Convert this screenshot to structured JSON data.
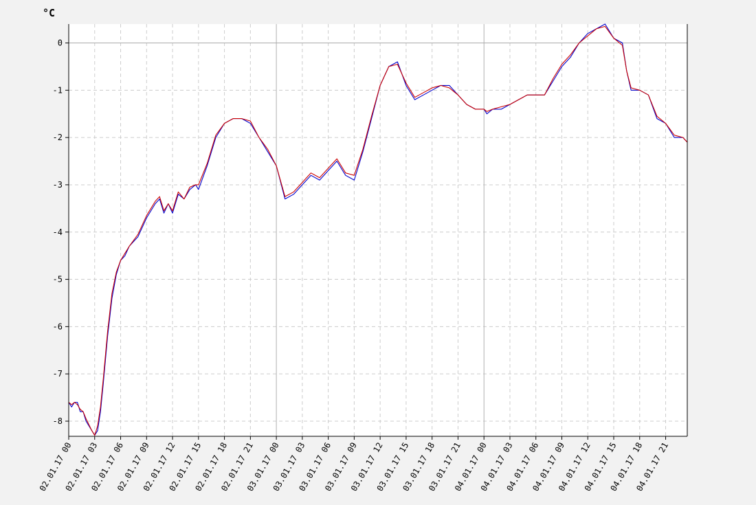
{
  "chart_data": {
    "type": "line",
    "unit_label": "°C",
    "ylabel": "°C",
    "xlabel": "",
    "title": "",
    "ylim": [
      -8.32,
      0.4
    ],
    "xlim_hours": [
      0,
      71.5
    ],
    "grid": true,
    "legend": "none",
    "y_ticks": [
      0,
      -1,
      -2,
      -3,
      -4,
      -5,
      -6,
      -7,
      -8
    ],
    "x_ticks": [
      {
        "t": "02.01.17 00:00",
        "label": "02.01.17 00"
      },
      {
        "t": "02.01.17 03:00",
        "label": "02.01.17 03"
      },
      {
        "t": "02.01.17 06:00",
        "label": "02.01.17 06"
      },
      {
        "t": "02.01.17 09:00",
        "label": "02.01.17 09"
      },
      {
        "t": "02.01.17 12:00",
        "label": "02.01.17 12"
      },
      {
        "t": "02.01.17 15:00",
        "label": "02.01.17 15"
      },
      {
        "t": "02.01.17 18:00",
        "label": "02.01.17 18"
      },
      {
        "t": "02.01.17 21:00",
        "label": "02.01.17 21"
      },
      {
        "t": "03.01.17 00:00",
        "label": "03.01.17 00"
      },
      {
        "t": "03.01.17 03:00",
        "label": "03.01.17 03"
      },
      {
        "t": "03.01.17 06:00",
        "label": "03.01.17 06"
      },
      {
        "t": "03.01.17 09:00",
        "label": "03.01.17 09"
      },
      {
        "t": "03.01.17 12:00",
        "label": "03.01.17 12"
      },
      {
        "t": "03.01.17 15:00",
        "label": "03.01.17 15"
      },
      {
        "t": "03.01.17 18:00",
        "label": "03.01.17 18"
      },
      {
        "t": "03.01.17 21:00",
        "label": "03.01.17 21"
      },
      {
        "t": "04.01.17 00:00",
        "label": "04.01.17 00"
      },
      {
        "t": "04.01.17 03:00",
        "label": "04.01.17 03"
      },
      {
        "t": "04.01.17 06:00",
        "label": "04.01.17 06"
      },
      {
        "t": "04.01.17 09:00",
        "label": "04.01.17 09"
      },
      {
        "t": "04.01.17 12:00",
        "label": "04.01.17 12"
      },
      {
        "t": "04.01.17 15:00",
        "label": "04.01.17 15"
      },
      {
        "t": "04.01.17 18:00",
        "label": "04.01.17 18"
      },
      {
        "t": "04.01.17 21:00",
        "label": "04.01.17 21"
      }
    ],
    "midnights": [
      "03.01.17 00:00",
      "04.01.17 00:00"
    ],
    "series": [
      {
        "color": "#0000cc",
        "points": [
          [
            "02.01.17 00:00",
            -7.6
          ],
          [
            "02.01.17 00:20",
            -7.7
          ],
          [
            "02.01.17 00:40",
            -7.6
          ],
          [
            "02.01.17 01:00",
            -7.6
          ],
          [
            "02.01.17 01:20",
            -7.8
          ],
          [
            "02.01.17 01:40",
            -7.8
          ],
          [
            "02.01.17 02:00",
            -8.0
          ],
          [
            "02.01.17 02:40",
            -8.2
          ],
          [
            "02.01.17 03:00",
            -8.3
          ],
          [
            "02.01.17 03:20",
            -8.2
          ],
          [
            "02.01.17 03:40",
            -7.8
          ],
          [
            "02.01.17 04:00",
            -7.2
          ],
          [
            "02.01.17 04:30",
            -6.2
          ],
          [
            "02.01.17 05:00",
            -5.4
          ],
          [
            "02.01.17 05:30",
            -4.9
          ],
          [
            "02.01.17 06:00",
            -4.6
          ],
          [
            "02.01.17 06:30",
            -4.5
          ],
          [
            "02.01.17 07:00",
            -4.3
          ],
          [
            "02.01.17 08:00",
            -4.1
          ],
          [
            "02.01.17 09:00",
            -3.7
          ],
          [
            "02.01.17 10:00",
            -3.4
          ],
          [
            "02.01.17 10:30",
            -3.3
          ],
          [
            "02.01.17 11:00",
            -3.6
          ],
          [
            "02.01.17 11:30",
            -3.4
          ],
          [
            "02.01.17 12:00",
            -3.6
          ],
          [
            "02.01.17 12:40",
            -3.2
          ],
          [
            "02.01.17 13:20",
            -3.3
          ],
          [
            "02.01.17 14:00",
            -3.1
          ],
          [
            "02.01.17 14:40",
            -3.0
          ],
          [
            "02.01.17 15:00",
            -3.1
          ],
          [
            "02.01.17 16:00",
            -2.6
          ],
          [
            "02.01.17 17:00",
            -2.0
          ],
          [
            "02.01.17 18:00",
            -1.7
          ],
          [
            "02.01.17 19:00",
            -1.6
          ],
          [
            "02.01.17 20:00",
            -1.6
          ],
          [
            "02.01.17 21:00",
            -1.7
          ],
          [
            "02.01.17 22:00",
            -2.0
          ],
          [
            "02.01.17 23:00",
            -2.3
          ],
          [
            "03.01.17 00:00",
            -2.6
          ],
          [
            "03.01.17 01:00",
            -3.3
          ],
          [
            "03.01.17 02:00",
            -3.2
          ],
          [
            "03.01.17 03:00",
            -3.0
          ],
          [
            "03.01.17 04:00",
            -2.8
          ],
          [
            "03.01.17 05:00",
            -2.9
          ],
          [
            "03.01.17 06:00",
            -2.7
          ],
          [
            "03.01.17 07:00",
            -2.5
          ],
          [
            "03.01.17 08:00",
            -2.8
          ],
          [
            "03.01.17 09:00",
            -2.9
          ],
          [
            "03.01.17 10:00",
            -2.3
          ],
          [
            "03.01.17 11:00",
            -1.6
          ],
          [
            "03.01.17 12:00",
            -0.9
          ],
          [
            "03.01.17 13:00",
            -0.5
          ],
          [
            "03.01.17 14:00",
            -0.4
          ],
          [
            "03.01.17 15:00",
            -0.9
          ],
          [
            "03.01.17 16:00",
            -1.2
          ],
          [
            "03.01.17 17:00",
            -1.1
          ],
          [
            "03.01.17 18:00",
            -1.0
          ],
          [
            "03.01.17 19:00",
            -0.9
          ],
          [
            "03.01.17 20:00",
            -0.9
          ],
          [
            "03.01.17 21:00",
            -1.1
          ],
          [
            "03.01.17 22:00",
            -1.3
          ],
          [
            "03.01.17 23:00",
            -1.4
          ],
          [
            "04.01.17 00:00",
            -1.4
          ],
          [
            "04.01.17 00:20",
            -1.5
          ],
          [
            "04.01.17 01:00",
            -1.4
          ],
          [
            "04.01.17 02:00",
            -1.4
          ],
          [
            "04.01.17 03:00",
            -1.3
          ],
          [
            "04.01.17 04:00",
            -1.2
          ],
          [
            "04.01.17 05:00",
            -1.1
          ],
          [
            "04.01.17 07:00",
            -1.1
          ],
          [
            "04.01.17 08:00",
            -0.8
          ],
          [
            "04.01.17 09:00",
            -0.5
          ],
          [
            "04.01.17 10:00",
            -0.3
          ],
          [
            "04.01.17 11:00",
            0.0
          ],
          [
            "04.01.17 12:00",
            0.2
          ],
          [
            "04.01.17 13:00",
            0.3
          ],
          [
            "04.01.17 14:00",
            0.4
          ],
          [
            "04.01.17 15:00",
            0.1
          ],
          [
            "04.01.17 16:00",
            0.0
          ],
          [
            "04.01.17 16:30",
            -0.6
          ],
          [
            "04.01.17 17:00",
            -1.0
          ],
          [
            "04.01.17 18:00",
            -1.0
          ],
          [
            "04.01.17 19:00",
            -1.1
          ],
          [
            "04.01.17 20:00",
            -1.6
          ],
          [
            "04.01.17 21:00",
            -1.7
          ],
          [
            "04.01.17 22:00",
            -2.0
          ],
          [
            "04.01.17 23:00",
            -2.0
          ],
          [
            "04.01.17 23:30",
            -2.1
          ]
        ]
      },
      {
        "color": "#cc0000",
        "points": [
          [
            "02.01.17 00:00",
            -7.6
          ],
          [
            "02.01.17 00:20",
            -7.65
          ],
          [
            "02.01.17 00:40",
            -7.6
          ],
          [
            "02.01.17 01:00",
            -7.65
          ],
          [
            "02.01.17 01:20",
            -7.75
          ],
          [
            "02.01.17 01:40",
            -7.8
          ],
          [
            "02.01.17 02:00",
            -7.95
          ],
          [
            "02.01.17 02:40",
            -8.2
          ],
          [
            "02.01.17 03:00",
            -8.3
          ],
          [
            "02.01.17 03:20",
            -8.1
          ],
          [
            "02.01.17 03:40",
            -7.7
          ],
          [
            "02.01.17 04:00",
            -7.1
          ],
          [
            "02.01.17 04:30",
            -6.1
          ],
          [
            "02.01.17 05:00",
            -5.3
          ],
          [
            "02.01.17 05:30",
            -4.85
          ],
          [
            "02.01.17 06:00",
            -4.6
          ],
          [
            "02.01.17 06:30",
            -4.45
          ],
          [
            "02.01.17 07:00",
            -4.3
          ],
          [
            "02.01.17 08:00",
            -4.05
          ],
          [
            "02.01.17 09:00",
            -3.65
          ],
          [
            "02.01.17 10:00",
            -3.35
          ],
          [
            "02.01.17 10:30",
            -3.25
          ],
          [
            "02.01.17 11:00",
            -3.55
          ],
          [
            "02.01.17 11:30",
            -3.4
          ],
          [
            "02.01.17 12:00",
            -3.55
          ],
          [
            "02.01.17 12:40",
            -3.15
          ],
          [
            "02.01.17 13:20",
            -3.3
          ],
          [
            "02.01.17 14:00",
            -3.05
          ],
          [
            "02.01.17 14:40",
            -3.0
          ],
          [
            "02.01.17 15:00",
            -3.0
          ],
          [
            "02.01.17 16:00",
            -2.55
          ],
          [
            "02.01.17 17:00",
            -1.95
          ],
          [
            "02.01.17 18:00",
            -1.7
          ],
          [
            "02.01.17 19:00",
            -1.6
          ],
          [
            "02.01.17 20:00",
            -1.6
          ],
          [
            "02.01.17 21:00",
            -1.65
          ],
          [
            "02.01.17 22:00",
            -2.0
          ],
          [
            "02.01.17 23:00",
            -2.25
          ],
          [
            "03.01.17 00:00",
            -2.6
          ],
          [
            "03.01.17 01:00",
            -3.25
          ],
          [
            "03.01.17 02:00",
            -3.15
          ],
          [
            "03.01.17 03:00",
            -2.95
          ],
          [
            "03.01.17 04:00",
            -2.75
          ],
          [
            "03.01.17 05:00",
            -2.85
          ],
          [
            "03.01.17 06:00",
            -2.65
          ],
          [
            "03.01.17 07:00",
            -2.45
          ],
          [
            "03.01.17 08:00",
            -2.75
          ],
          [
            "03.01.17 09:00",
            -2.8
          ],
          [
            "03.01.17 10:00",
            -2.25
          ],
          [
            "03.01.17 11:00",
            -1.55
          ],
          [
            "03.01.17 12:00",
            -0.9
          ],
          [
            "03.01.17 13:00",
            -0.5
          ],
          [
            "03.01.17 14:00",
            -0.45
          ],
          [
            "03.01.17 15:00",
            -0.85
          ],
          [
            "03.01.17 16:00",
            -1.15
          ],
          [
            "03.01.17 17:00",
            -1.05
          ],
          [
            "03.01.17 18:00",
            -0.95
          ],
          [
            "03.01.17 19:00",
            -0.9
          ],
          [
            "03.01.17 20:00",
            -0.95
          ],
          [
            "03.01.17 21:00",
            -1.1
          ],
          [
            "03.01.17 22:00",
            -1.3
          ],
          [
            "03.01.17 23:00",
            -1.4
          ],
          [
            "04.01.17 00:00",
            -1.4
          ],
          [
            "04.01.17 00:20",
            -1.45
          ],
          [
            "04.01.17 01:00",
            -1.4
          ],
          [
            "04.01.17 02:00",
            -1.35
          ],
          [
            "04.01.17 03:00",
            -1.3
          ],
          [
            "04.01.17 04:00",
            -1.2
          ],
          [
            "04.01.17 05:00",
            -1.1
          ],
          [
            "04.01.17 07:00",
            -1.1
          ],
          [
            "04.01.17 08:00",
            -0.75
          ],
          [
            "04.01.17 09:00",
            -0.45
          ],
          [
            "04.01.17 10:00",
            -0.25
          ],
          [
            "04.01.17 11:00",
            0.0
          ],
          [
            "04.01.17 12:00",
            0.15
          ],
          [
            "04.01.17 13:00",
            0.3
          ],
          [
            "04.01.17 14:00",
            0.35
          ],
          [
            "04.01.17 15:00",
            0.1
          ],
          [
            "04.01.17 16:00",
            -0.05
          ],
          [
            "04.01.17 16:30",
            -0.6
          ],
          [
            "04.01.17 17:00",
            -0.95
          ],
          [
            "04.01.17 18:00",
            -1.0
          ],
          [
            "04.01.17 19:00",
            -1.1
          ],
          [
            "04.01.17 20:00",
            -1.55
          ],
          [
            "04.01.17 21:00",
            -1.7
          ],
          [
            "04.01.17 22:00",
            -1.95
          ],
          [
            "04.01.17 23:00",
            -2.0
          ],
          [
            "04.01.17 23:30",
            -2.1
          ]
        ]
      }
    ]
  }
}
